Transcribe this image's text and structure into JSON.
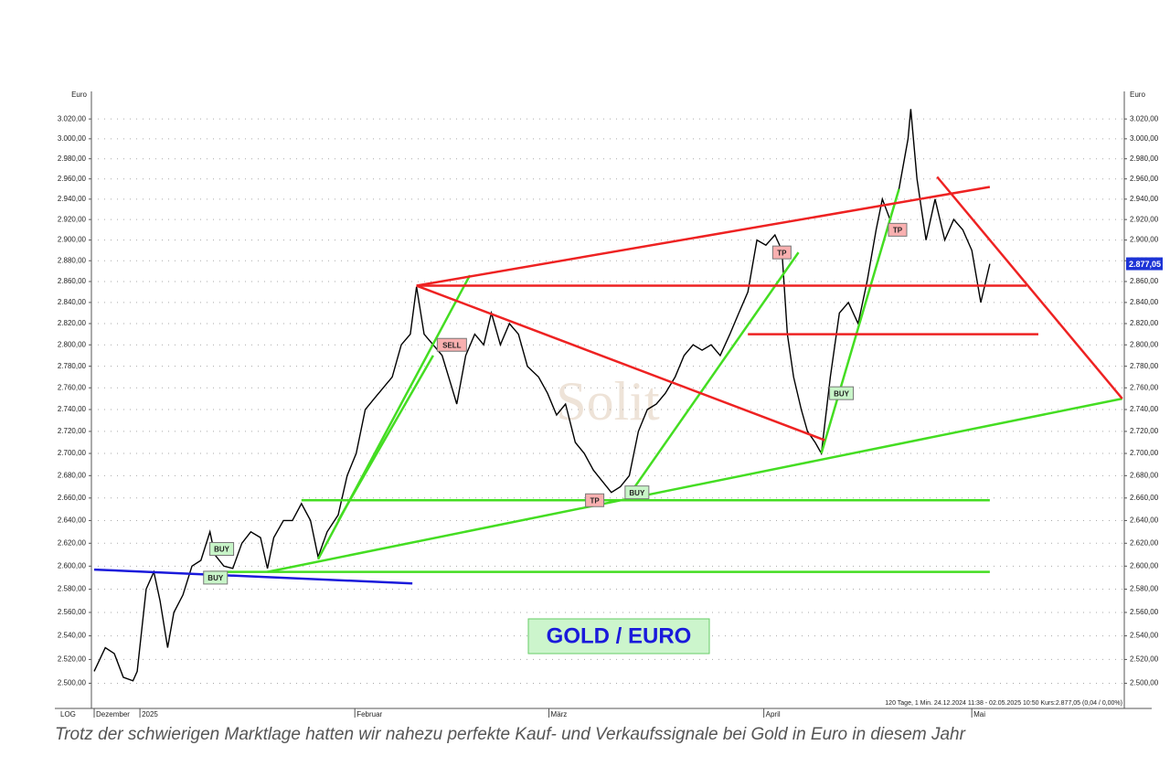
{
  "chart_data": {
    "type": "line",
    "y_label": "Euro",
    "scale_label": "LOG",
    "log_scale": true,
    "grid": true,
    "color": "#000000",
    "x": [
      1.4,
      3,
      4.3,
      5.6,
      7,
      7.6,
      8.9,
      10,
      10.9,
      12,
      12.9,
      14.2,
      15.5,
      16.8,
      18.1,
      18.8,
      20.1,
      21.4,
      22.7,
      24,
      25.4,
      26.4,
      27.3,
      28.7,
      30,
      31.3,
      32.6,
      33.7,
      35,
      36.6,
      37.9,
      39.2,
      40.5,
      41.8,
      43.1,
      44.4,
      45.7,
      47,
      47.9,
      49,
      50.3,
      51.6,
      53,
      53.7,
      55,
      56.3,
      57.6,
      58.7,
      60,
      61.3,
      62.6,
      63.9,
      65.5,
      66.8,
      68.1,
      69.4,
      70.8,
      72.1,
      73.4,
      74.7,
      76,
      77.3,
      78.6,
      79.9,
      81.2,
      82.5,
      83.8,
      85.2,
      86.5,
      87.8,
      89.1,
      90.4,
      91.7,
      93.1,
      94.4,
      95.7,
      97,
      98.3,
      99.6,
      100.6,
      101.4,
      102.3,
      103.4,
      104.3,
      105.4,
      106.3,
      107.6,
      108.9,
      110.2,
      111.6,
      112.9,
      114.2,
      115.1,
      116.2,
      117.5,
      118.8,
      119.2,
      120.1,
      121.4,
      122.7,
      124.1,
      125.4,
      126.7,
      128,
      129.3,
      130.6
    ],
    "values": [
      2510,
      2530,
      2525,
      2505,
      2502,
      2510,
      2580,
      2595,
      2570,
      2530,
      2560,
      2575,
      2600,
      2605,
      2630,
      2610,
      2600,
      2598,
      2620,
      2630,
      2625,
      2598,
      2625,
      2640,
      2640,
      2655,
      2640,
      2608,
      2630,
      2645,
      2680,
      2700,
      2740,
      2750,
      2760,
      2770,
      2800,
      2810,
      2855,
      2810,
      2800,
      2790,
      2760,
      2745,
      2790,
      2810,
      2800,
      2830,
      2800,
      2820,
      2810,
      2780,
      2770,
      2755,
      2735,
      2745,
      2710,
      2700,
      2685,
      2675,
      2665,
      2670,
      2680,
      2720,
      2740,
      2745,
      2755,
      2770,
      2790,
      2800,
      2795,
      2800,
      2790,
      2810,
      2830,
      2850,
      2900,
      2895,
      2905,
      2890,
      2810,
      2770,
      2740,
      2720,
      2710,
      2700,
      2770,
      2830,
      2840,
      2820,
      2860,
      2910,
      2940,
      2920,
      2950,
      3000,
      3030,
      2960,
      2900,
      2940,
      2900,
      2920,
      2910,
      2890,
      2840,
      2877
    ],
    "xlim": [
      1,
      150
    ],
    "xticks": [
      {
        "value": 1.4,
        "label": "Dezember"
      },
      {
        "value": 8,
        "label": "2025"
      },
      {
        "value": 39,
        "label": "Februar"
      },
      {
        "value": 67,
        "label": "März"
      },
      {
        "value": 98,
        "label": "April"
      },
      {
        "value": 128,
        "label": "Mai"
      }
    ],
    "ylim": [
      2479,
      3048
    ],
    "yticks": [
      {
        "value": 2500,
        "label": "2.500,00"
      },
      {
        "value": 2520,
        "label": "2.520,00"
      },
      {
        "value": 2540,
        "label": "2.540,00"
      },
      {
        "value": 2560,
        "label": "2.560,00"
      },
      {
        "value": 2580,
        "label": "2.580,00"
      },
      {
        "value": 2600,
        "label": "2.600,00"
      },
      {
        "value": 2620,
        "label": "2.620,00"
      },
      {
        "value": 2640,
        "label": "2.640,00"
      },
      {
        "value": 2660,
        "label": "2.660,00"
      },
      {
        "value": 2680,
        "label": "2.680,00"
      },
      {
        "value": 2700,
        "label": "2.700,00"
      },
      {
        "value": 2720,
        "label": "2.720,00"
      },
      {
        "value": 2740,
        "label": "2.740,00"
      },
      {
        "value": 2760,
        "label": "2.760,00"
      },
      {
        "value": 2780,
        "label": "2.780,00"
      },
      {
        "value": 2800,
        "label": "2.800,00"
      },
      {
        "value": 2820,
        "label": "2.820,00"
      },
      {
        "value": 2840,
        "label": "2.840,00"
      },
      {
        "value": 2860,
        "label": "2.860,00"
      },
      {
        "value": 2880,
        "label": "2.880,00"
      },
      {
        "value": 2900,
        "label": "2.900,00"
      },
      {
        "value": 2920,
        "label": "2.920,00"
      },
      {
        "value": 2940,
        "label": "2.940,00"
      },
      {
        "value": 2960,
        "label": "2.960,00"
      },
      {
        "value": 2980,
        "label": "2.980,00"
      },
      {
        "value": 3000,
        "label": "3.000,00"
      },
      {
        "value": 3020,
        "label": "3.020,00"
      }
    ],
    "last_value": {
      "value": 2877.05,
      "label": "2.877,05"
    },
    "trend_lines": [
      {
        "color": "#1a1adb",
        "x": [
          1.4,
          47.3
        ],
        "y": [
          2597,
          2585
        ]
      },
      {
        "color": "#44dd22",
        "x": [
          18.1,
          130.6
        ],
        "y": [
          2595,
          2595
        ]
      },
      {
        "color": "#44dd22",
        "x": [
          31.3,
          130.6
        ],
        "y": [
          2658,
          2658
        ]
      },
      {
        "color": "#44dd22",
        "x": [
          26.4,
          149.7
        ],
        "y": [
          2595,
          2750
        ]
      },
      {
        "color": "#44dd22",
        "x": [
          33.7,
          55.6
        ],
        "y": [
          2606,
          2866
        ]
      },
      {
        "color": "#44dd22",
        "x": [
          36.6,
          50.3
        ],
        "y": [
          2640,
          2790
        ]
      },
      {
        "color": "#44dd22",
        "x": [
          78.6,
          103
        ],
        "y": [
          2663,
          2888
        ]
      },
      {
        "color": "#44dd22",
        "x": [
          106.3,
          117.5
        ],
        "y": [
          2700,
          2950
        ]
      },
      {
        "color": "#ee2222",
        "x": [
          47.9,
          130.6
        ],
        "y": [
          2856,
          2952
        ]
      },
      {
        "color": "#ee2222",
        "x": [
          47.9,
          135.9
        ],
        "y": [
          2856,
          2856
        ]
      },
      {
        "color": "#ee2222",
        "x": [
          95.7,
          137.6
        ],
        "y": [
          2810,
          2810
        ]
      },
      {
        "color": "#ee2222",
        "x": [
          47.9,
          106.8
        ],
        "y": [
          2856,
          2712
        ]
      },
      {
        "color": "#ee2222",
        "x": [
          123,
          149.7
        ],
        "y": [
          2962,
          2750
        ]
      }
    ],
    "signals": [
      {
        "label": "BUY",
        "x": 19.8,
        "y": 2615,
        "color": "#c8f5c8"
      },
      {
        "label": "BUY",
        "x": 18.9,
        "y": 2590,
        "color": "#c8f5c8"
      },
      {
        "label": "SELL",
        "x": 53,
        "y": 2800,
        "color": "#f9b0b0"
      },
      {
        "label": "TP",
        "x": 73.6,
        "y": 2658,
        "color": "#f9b0b0"
      },
      {
        "label": "BUY",
        "x": 79.7,
        "y": 2665,
        "color": "#c8f5c8"
      },
      {
        "label": "TP",
        "x": 100.6,
        "y": 2888,
        "color": "#f9b0b0"
      },
      {
        "label": "BUY",
        "x": 109.2,
        "y": 2755,
        "color": "#c8f5c8"
      },
      {
        "label": "TP",
        "x": 117.3,
        "y": 2910,
        "color": "#f9b0b0"
      }
    ],
    "watermark": "Solit",
    "title": "GOLD / EURO",
    "info": "120 Tage, 1 Min. 24.12.2024 11:38 - 02.05.2025 10:50 Kurs:2.877,05 (0,04 / 0,00%)",
    "caption": "Trotz der schwierigen Marktlage hatten wir nahezu perfekte Kauf- und Verkaufssignale bei Gold in Euro in diesem Jahr"
  }
}
